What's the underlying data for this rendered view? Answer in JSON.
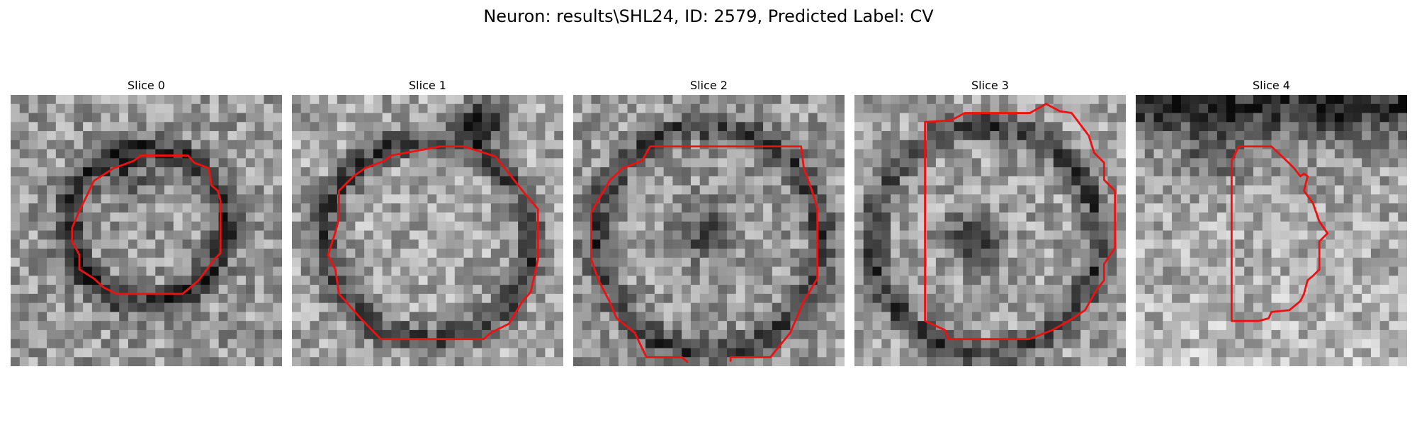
{
  "figure": {
    "title": "Neuron: results\\SHL24, ID: 2579, Predicted Label: CV",
    "contour_color": "#ee1111"
  },
  "slices": [
    {
      "title": "Slice 0"
    },
    {
      "title": "Slice 1"
    },
    {
      "title": "Slice 2"
    },
    {
      "title": "Slice 3"
    },
    {
      "title": "Slice 4"
    }
  ]
}
